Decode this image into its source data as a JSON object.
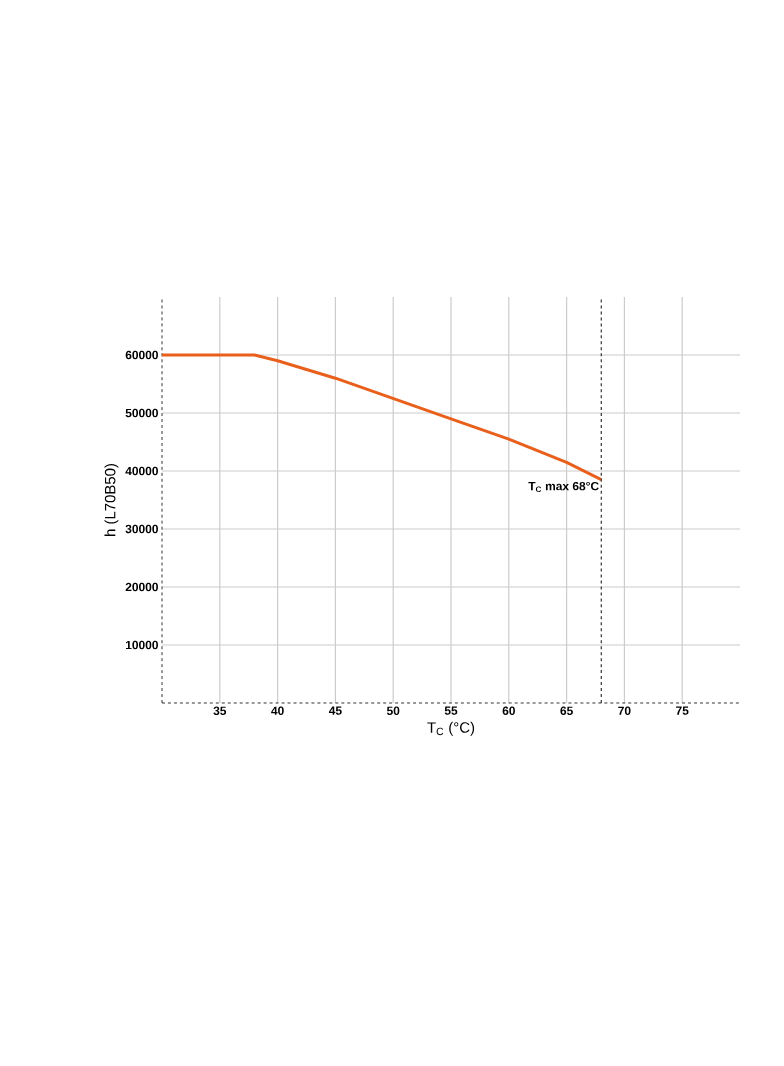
{
  "chart_data": {
    "type": "line",
    "xlabel": "T$_{C}$ (°C)",
    "ylabel": "h (L70B50)",
    "x": [
      30,
      38,
      40,
      45,
      50,
      55,
      60,
      65,
      68
    ],
    "series": [
      {
        "color": "#e8601c",
        "values": [
          60000,
          60000,
          59000,
          56000,
          52500,
          49000,
          45500,
          41500,
          38500
        ]
      }
    ],
    "xlim": [
      30,
      80
    ],
    "ylim": [
      0,
      70000
    ],
    "xticks": [
      35,
      40,
      45,
      50,
      55,
      60,
      65,
      70,
      75
    ],
    "yticks": [
      10000,
      20000,
      30000,
      40000,
      50000,
      60000
    ],
    "grid": true,
    "marker": "none",
    "line_style": "solid",
    "ref_lines": [
      {
        "axis": "x",
        "value": 68,
        "label": "T$_{C}$ max 68°C",
        "color": "#333333",
        "line_style": "dashed"
      }
    ]
  }
}
